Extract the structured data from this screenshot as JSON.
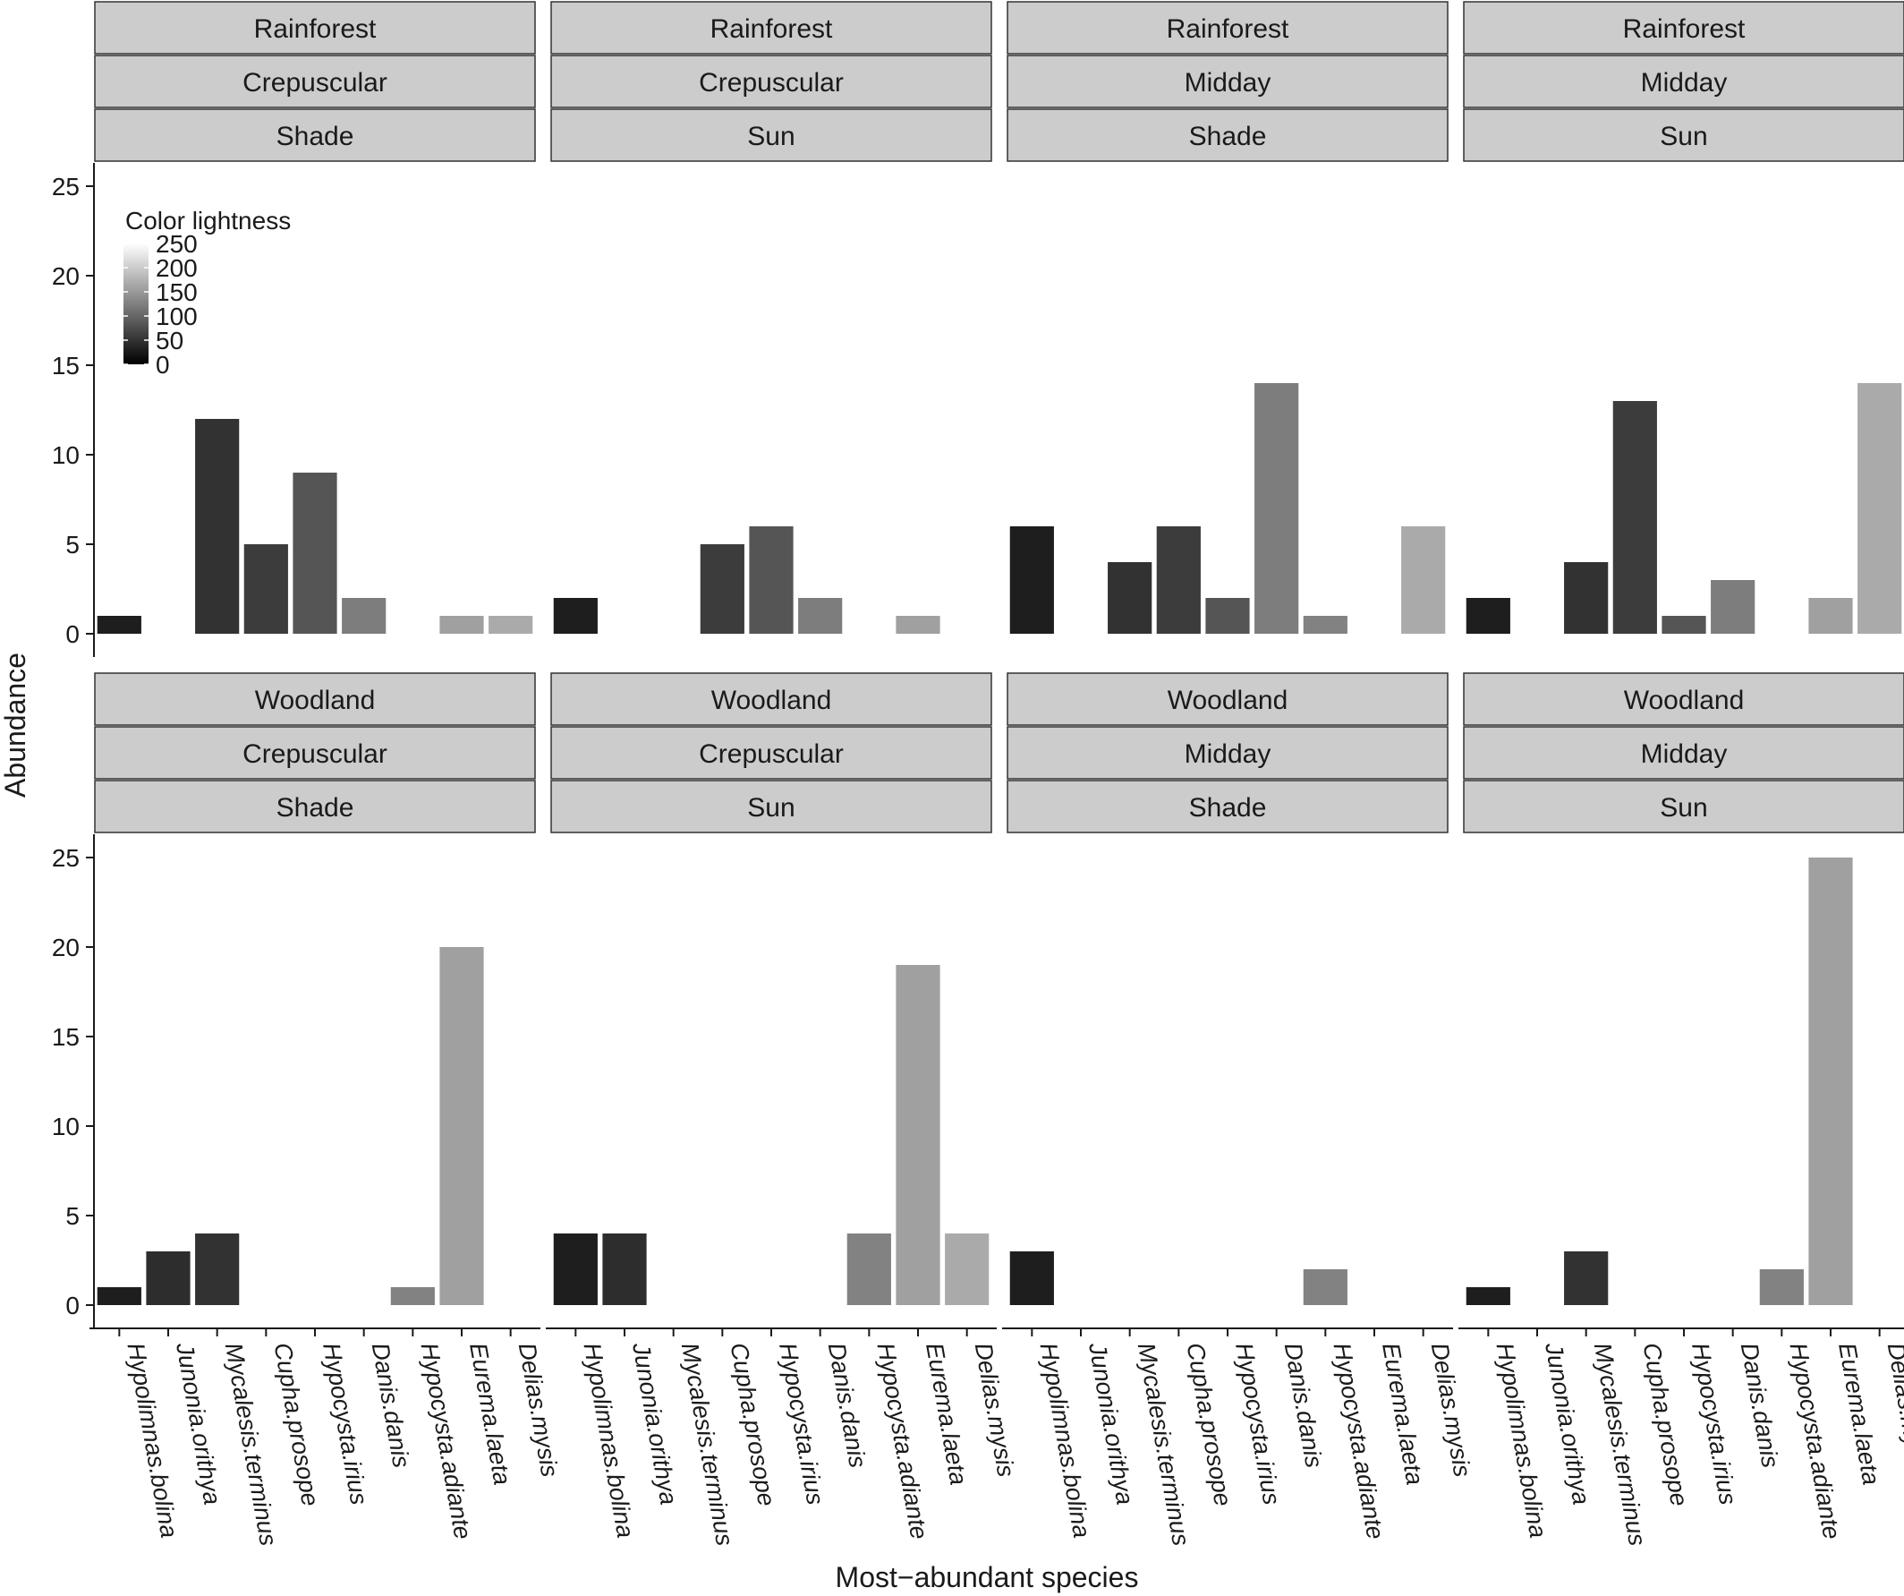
{
  "chart_data": {
    "type": "bar",
    "xlabel": "Most−abundant species",
    "ylabel": "Abundance",
    "ylim": [
      0,
      25
    ],
    "yticks": [
      0,
      5,
      10,
      15,
      20,
      25
    ],
    "grid": false,
    "facet_rows": 2,
    "facet_cols": 4,
    "categories": [
      "Hypolimnas.bolina",
      "Junonia.orithya",
      "Mycalesis.terminus",
      "Cupha.prosope",
      "Hypocysta.irius",
      "Danis.danis",
      "Hypocysta.adiante",
      "Eurema.laeta",
      "Delias.mysis"
    ],
    "category_lightness": [
      30,
      45,
      50,
      60,
      85,
      125,
      130,
      160,
      170
    ],
    "legend": {
      "title": "Color lightness",
      "position": "top-left",
      "ticks": [
        "0",
        "50",
        "100",
        "150",
        "200",
        "250"
      ],
      "color_low": "#000000",
      "color_high": "#ffffff"
    },
    "strip_fill": "#cccccc",
    "panels": [
      {
        "strips": [
          "Rainforest",
          "Crepuscular",
          "Shade"
        ],
        "values": [
          1,
          0,
          12,
          5,
          9,
          2,
          0,
          1,
          1
        ]
      },
      {
        "strips": [
          "Rainforest",
          "Crepuscular",
          "Sun"
        ],
        "values": [
          2,
          0,
          0,
          5,
          6,
          2,
          0,
          1,
          0
        ]
      },
      {
        "strips": [
          "Rainforest",
          "Midday",
          "Shade"
        ],
        "values": [
          6,
          0,
          4,
          6,
          2,
          14,
          1,
          0,
          6
        ]
      },
      {
        "strips": [
          "Rainforest",
          "Midday",
          "Sun"
        ],
        "values": [
          2,
          0,
          4,
          13,
          1,
          3,
          0,
          2,
          14
        ]
      },
      {
        "strips": [
          "Woodland",
          "Crepuscular",
          "Shade"
        ],
        "values": [
          1,
          3,
          4,
          0,
          0,
          0,
          1,
          20,
          0
        ]
      },
      {
        "strips": [
          "Woodland",
          "Crepuscular",
          "Sun"
        ],
        "values": [
          4,
          4,
          0,
          0,
          0,
          0,
          4,
          19,
          4
        ]
      },
      {
        "strips": [
          "Woodland",
          "Midday",
          "Shade"
        ],
        "values": [
          3,
          0,
          0,
          0,
          0,
          0,
          2,
          0,
          0
        ]
      },
      {
        "strips": [
          "Woodland",
          "Midday",
          "Sun"
        ],
        "values": [
          1,
          0,
          3,
          0,
          0,
          0,
          2,
          25,
          0
        ]
      }
    ]
  }
}
